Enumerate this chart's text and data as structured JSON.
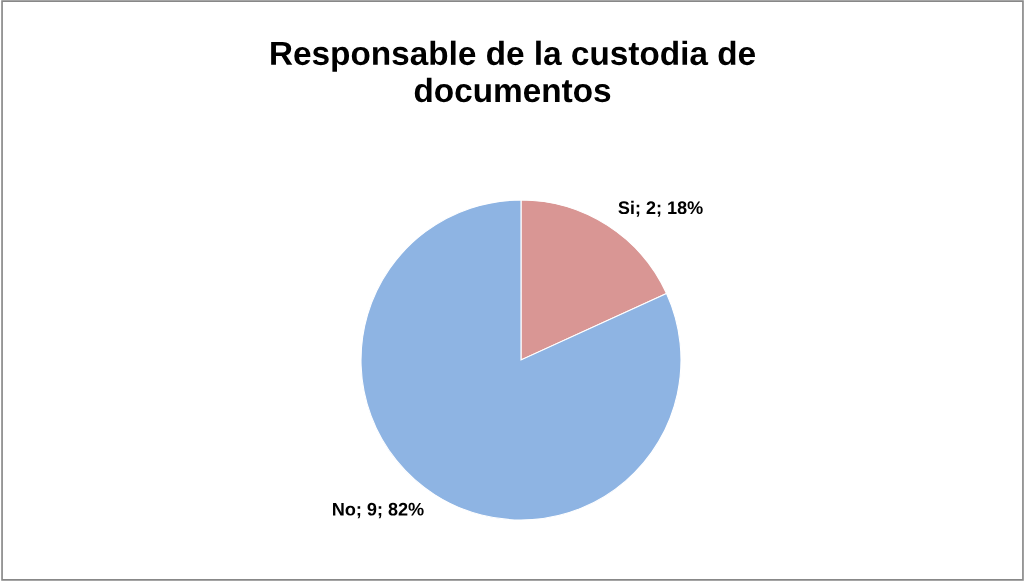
{
  "chart_data": {
    "type": "pie",
    "title": "Responsable de la custodia de\ndocumentos",
    "values": [
      2,
      9
    ],
    "colors": [
      "#d99694",
      "#8eb4e3"
    ],
    "value_labels": [
      "Si; 2; 18%",
      "No; 9; 82%"
    ]
  }
}
